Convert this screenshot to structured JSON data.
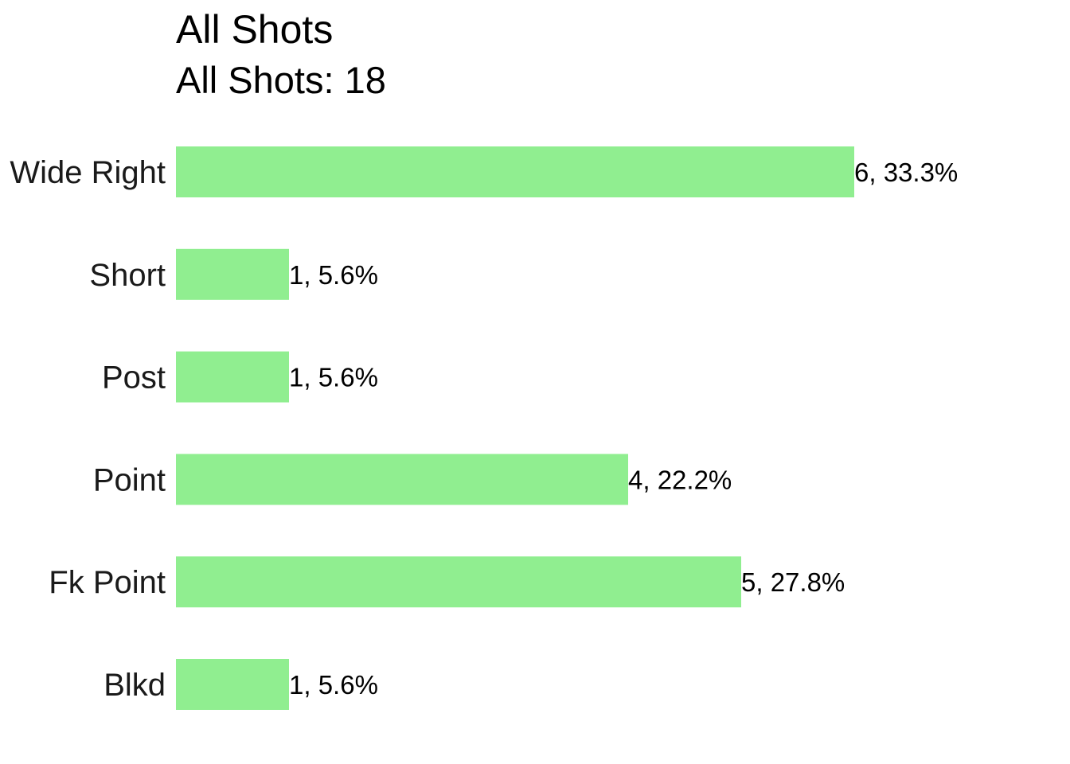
{
  "chart_data": {
    "type": "bar",
    "orientation": "horizontal",
    "title": "All Shots",
    "subtitle": "All Shots: 18",
    "categories": [
      "Wide Right",
      "Short",
      "Post",
      "Point",
      "Fk Point",
      "Blkd"
    ],
    "values": [
      6,
      1,
      1,
      4,
      5,
      1
    ],
    "data_labels": [
      "6, 33.3%",
      "1, 5.6%",
      "1, 5.6%",
      "4, 22.2%",
      "5, 27.8%",
      "1, 5.6%"
    ],
    "xlabel": "",
    "ylabel": "",
    "xlim": [
      0,
      6
    ],
    "grid": false,
    "legend": "none",
    "bar_color": "#90EE90"
  }
}
